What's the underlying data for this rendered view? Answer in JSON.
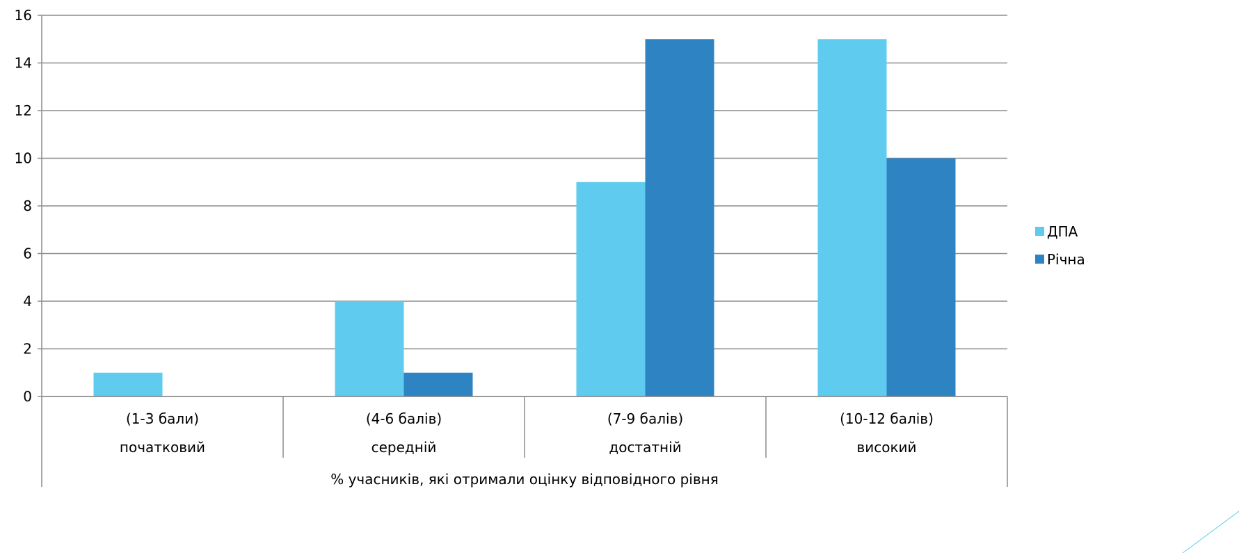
{
  "chart_data": {
    "type": "bar",
    "categories": [
      {
        "range": "(1-3 бали)",
        "level": "початковий"
      },
      {
        "range": "(4-6 балів)",
        "level": "середній"
      },
      {
        "range": "(7-9 балів)",
        "level": "достатній"
      },
      {
        "range": "(10-12 балів)",
        "level": "високий"
      }
    ],
    "series": [
      {
        "name": "ДПА",
        "color": "#5ecbef",
        "values": [
          1,
          4,
          9,
          15
        ]
      },
      {
        "name": "Річна",
        "color": "#2e83c3",
        "values": [
          0,
          1,
          15,
          10
        ]
      }
    ],
    "xlabel": "% учасників, які отримали оцінку відповідного рівня",
    "ylabel": "",
    "ylim": [
      0,
      16
    ],
    "yticks": [
      0,
      2,
      4,
      6,
      8,
      10,
      12,
      14,
      16
    ],
    "grid": true,
    "legend_position": "right"
  }
}
